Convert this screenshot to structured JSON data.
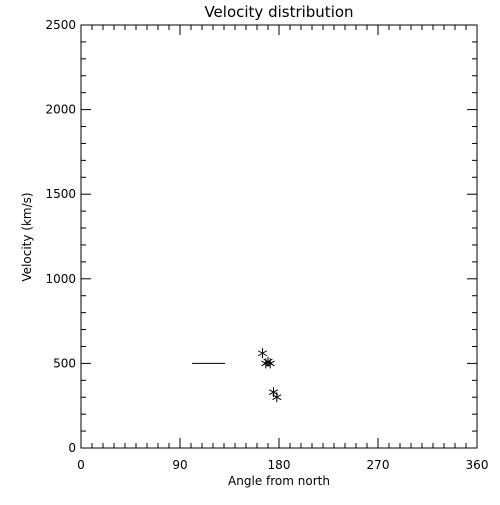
{
  "chart_data": {
    "type": "scatter",
    "title": "Velocity distribution",
    "xlabel": "Angle from north",
    "ylabel": "Velocity (km/s)",
    "xlim": [
      0,
      360
    ],
    "ylim": [
      0,
      2500
    ],
    "x_ticks": [
      0,
      90,
      180,
      270,
      360
    ],
    "y_ticks": [
      0,
      500,
      1000,
      1500,
      2000,
      2500
    ],
    "x_minor_step": 10,
    "y_minor_step": 100,
    "grid": false,
    "marker": "asterisk",
    "points": [
      {
        "x": 165,
        "y": 560
      },
      {
        "x": 168,
        "y": 500
      },
      {
        "x": 170,
        "y": 510
      },
      {
        "x": 172,
        "y": 500
      },
      {
        "x": 175,
        "y": 330
      },
      {
        "x": 178,
        "y": 300
      }
    ],
    "segments": [
      {
        "x": [
          101,
          131
        ],
        "y": [
          500,
          500
        ]
      }
    ],
    "colors": {
      "foreground": "#000000",
      "background": "#ffffff"
    }
  }
}
